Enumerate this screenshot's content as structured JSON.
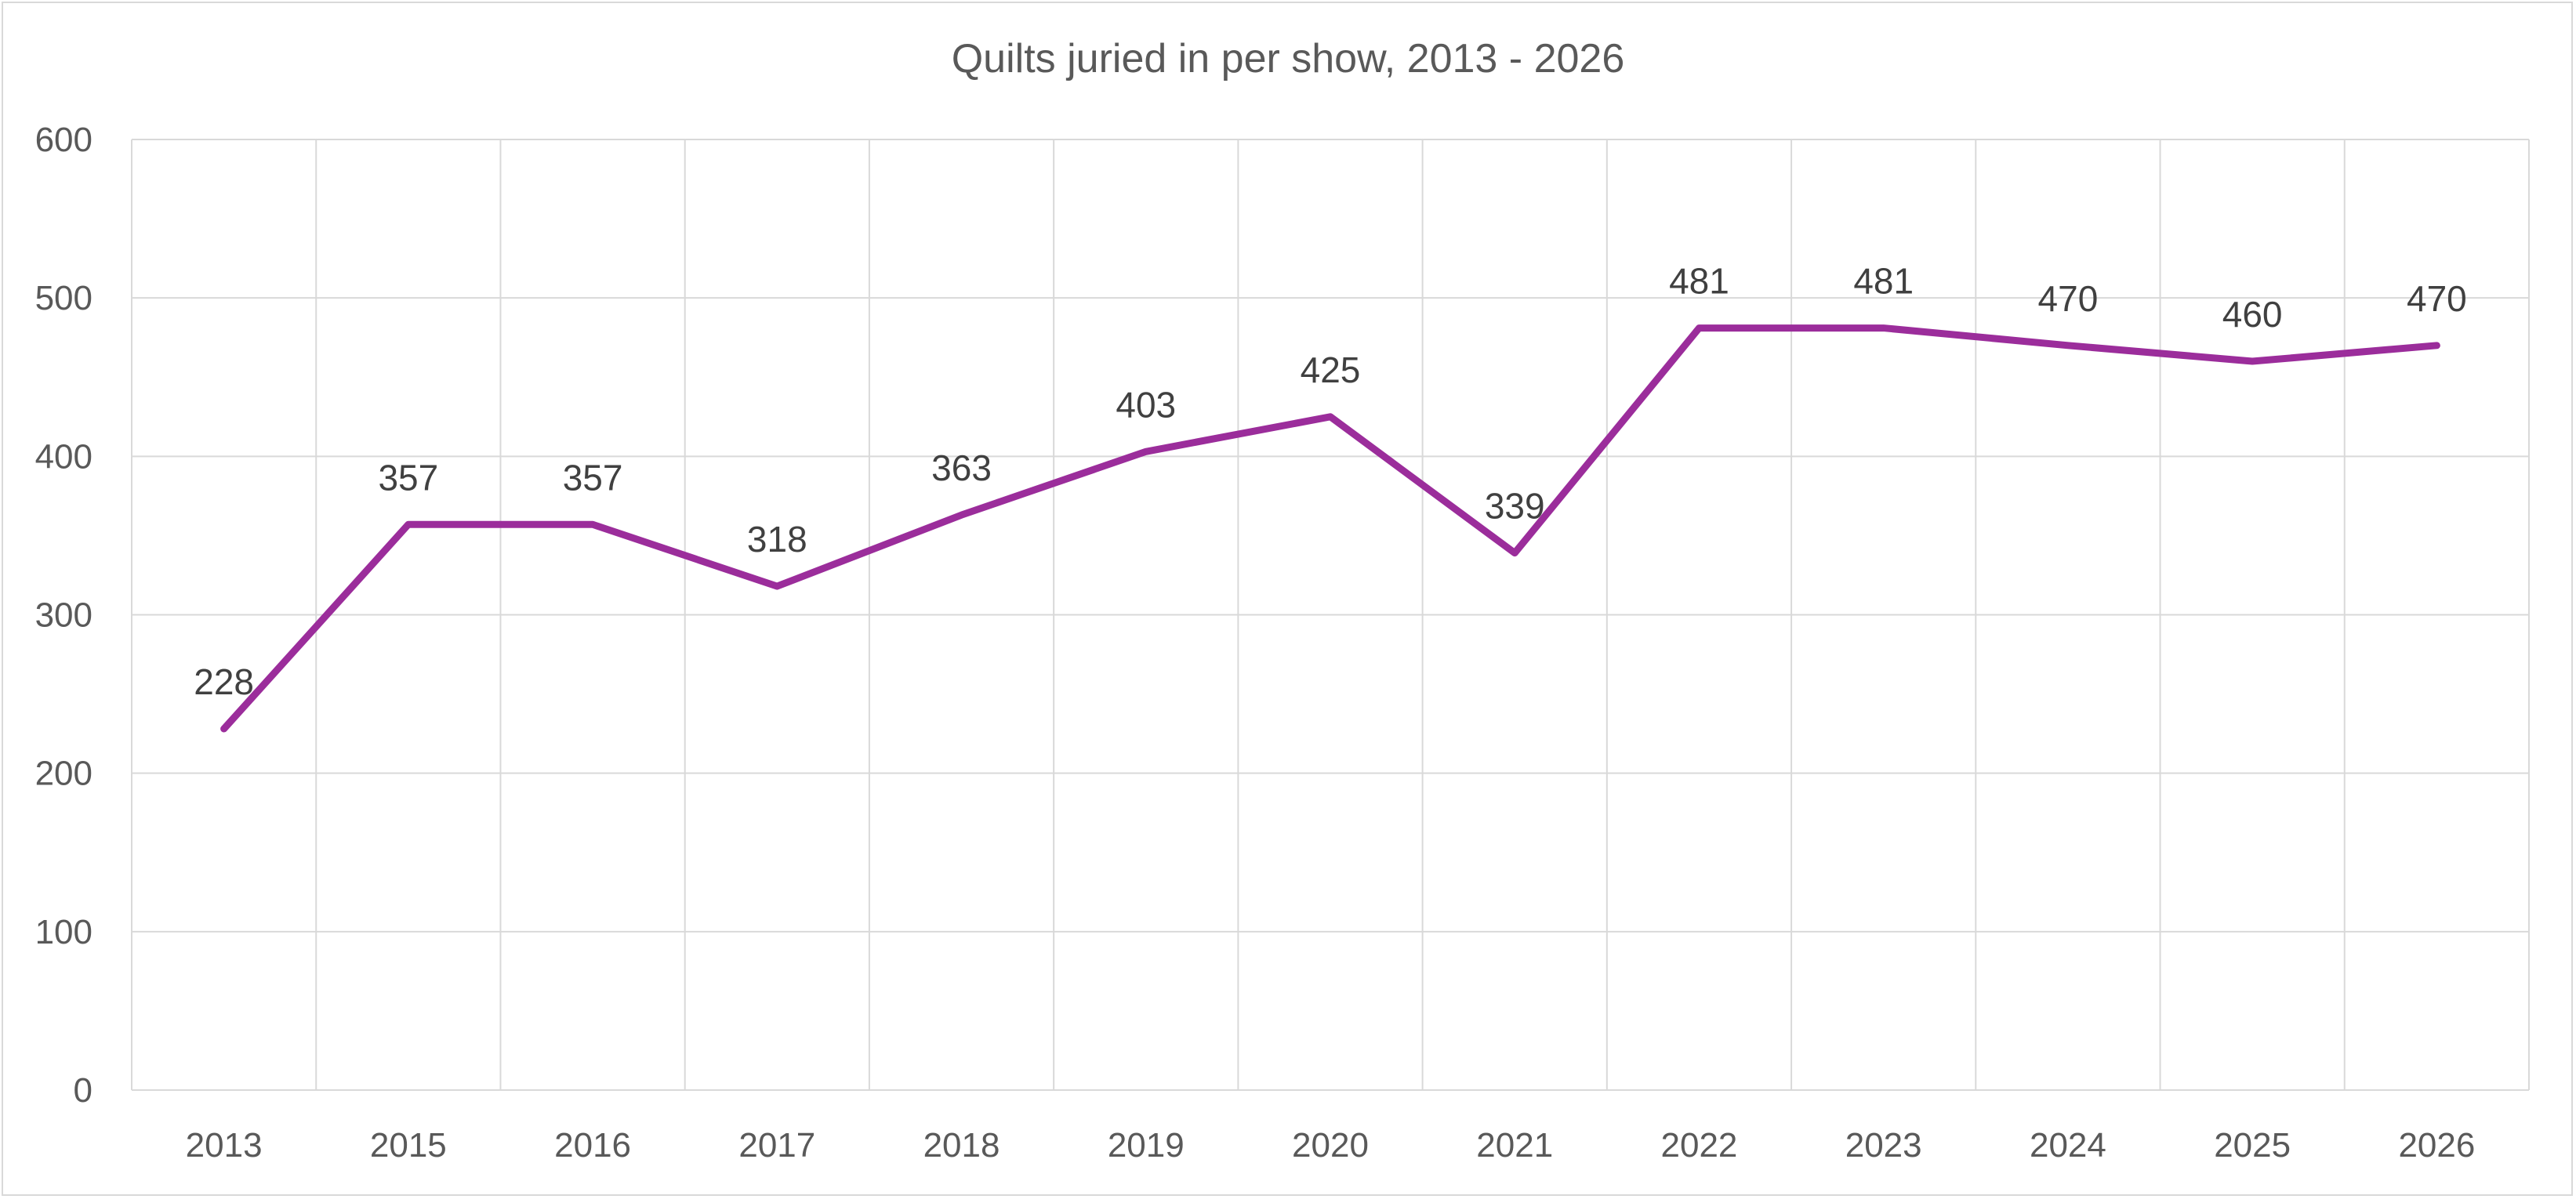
{
  "chart_data": {
    "type": "line",
    "title": "Quilts juried in per show, 2013 - 2026",
    "xlabel": "",
    "ylabel": "",
    "categories": [
      "2013",
      "2015",
      "2016",
      "2017",
      "2018",
      "2019",
      "2020",
      "2021",
      "2022",
      "2023",
      "2024",
      "2025",
      "2026"
    ],
    "series": [
      {
        "values": [
          228,
          357,
          357,
          318,
          363,
          403,
          425,
          339,
          481,
          481,
          470,
          460,
          470
        ],
        "color": "#9B2D9B"
      }
    ],
    "ylim": [
      0,
      600
    ],
    "yticks": [
      "0",
      "100",
      "200",
      "300",
      "400",
      "500",
      "600"
    ],
    "data_labels": [
      "228",
      "357",
      "357",
      "318",
      "363",
      "403",
      "425",
      "339",
      "481",
      "481",
      "470",
      "460",
      "470"
    ],
    "grid": true,
    "legend": "none"
  }
}
